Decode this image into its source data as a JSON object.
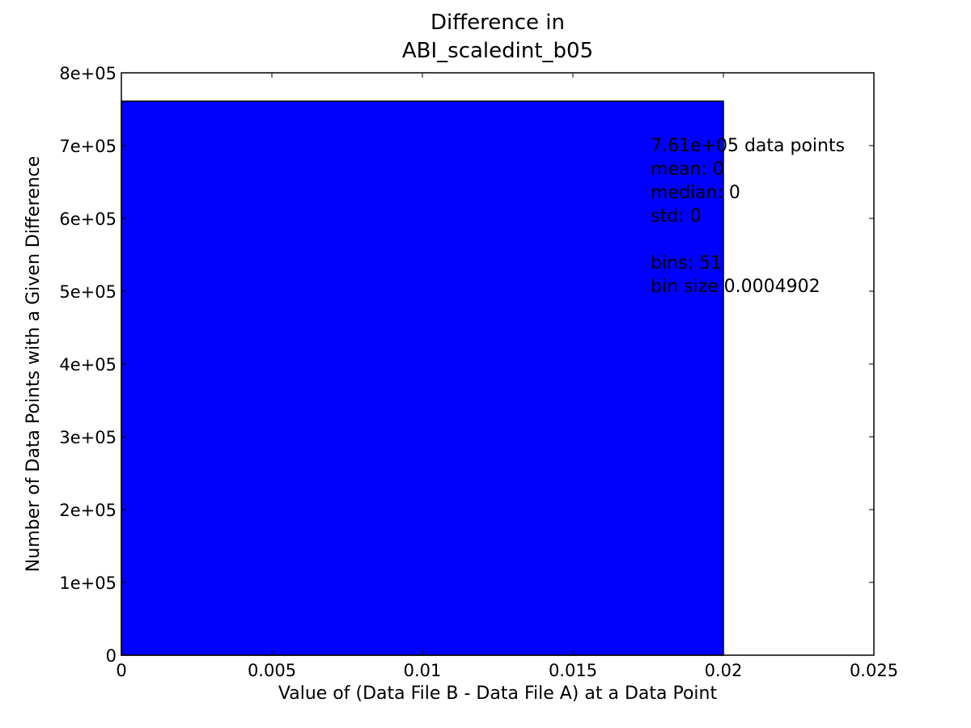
{
  "chart_data": {
    "type": "bar",
    "title_lines": [
      "Difference in",
      "ABI_scaledint_b05"
    ],
    "xlabel": "Value of (Data File B - Data File A) at a Data Point",
    "ylabel": "Number of Data Points with a Given Difference",
    "xlim": [
      0,
      0.025
    ],
    "ylim": [
      0,
      800000
    ],
    "x_ticks": [
      {
        "value": 0,
        "label": "0"
      },
      {
        "value": 0.005,
        "label": "0.005"
      },
      {
        "value": 0.01,
        "label": "0.01"
      },
      {
        "value": 0.015,
        "label": "0.015"
      },
      {
        "value": 0.02,
        "label": "0.02"
      },
      {
        "value": 0.025,
        "label": "0.025"
      }
    ],
    "y_ticks": [
      {
        "value": 0,
        "label": "0"
      },
      {
        "value": 100000,
        "label": "1e+05"
      },
      {
        "value": 200000,
        "label": "2e+05"
      },
      {
        "value": 300000,
        "label": "3e+05"
      },
      {
        "value": 400000,
        "label": "4e+05"
      },
      {
        "value": 500000,
        "label": "5e+05"
      },
      {
        "value": 600000,
        "label": "6e+05"
      },
      {
        "value": 700000,
        "label": "7e+05"
      },
      {
        "value": 800000,
        "label": "8e+05"
      }
    ],
    "bars": [
      {
        "x_start": 0,
        "x_end": 0.02,
        "value": 761000
      }
    ],
    "bar_color": "#0000ff",
    "grid": false,
    "stats_text": [
      "7.61e+05 data points",
      "mean: 0",
      "median: 0",
      "std: 0",
      "",
      "bins: 51",
      "bin size 0.0004902"
    ]
  }
}
